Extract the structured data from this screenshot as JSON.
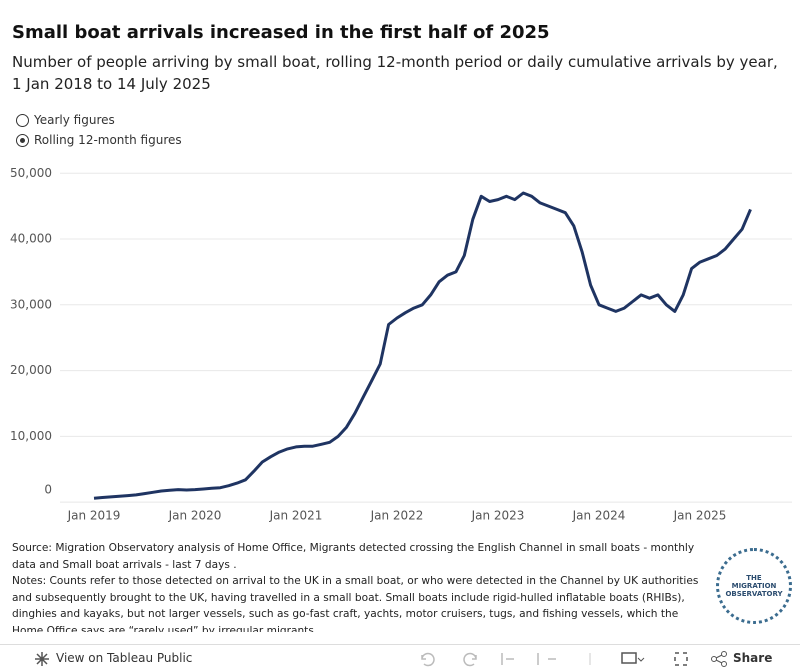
{
  "chart_data": {
    "type": "line",
    "title": "Small boat arrivals increased in the first half of 2025",
    "subtitle": "Number of people arriving by small boat, rolling 12-month period or daily cumulative arrivals by year, 1 Jan 2018 to 14 July 2025",
    "x": [
      "2019-01",
      "2019-02",
      "2019-03",
      "2019-04",
      "2019-05",
      "2019-06",
      "2019-07",
      "2019-08",
      "2019-09",
      "2019-10",
      "2019-11",
      "2019-12",
      "2020-01",
      "2020-02",
      "2020-03",
      "2020-04",
      "2020-05",
      "2020-06",
      "2020-07",
      "2020-08",
      "2020-09",
      "2020-10",
      "2020-11",
      "2020-12",
      "2021-01",
      "2021-02",
      "2021-03",
      "2021-04",
      "2021-05",
      "2021-06",
      "2021-07",
      "2021-08",
      "2021-09",
      "2021-10",
      "2021-11",
      "2021-12",
      "2022-01",
      "2022-02",
      "2022-03",
      "2022-04",
      "2022-05",
      "2022-06",
      "2022-07",
      "2022-08",
      "2022-09",
      "2022-10",
      "2022-11",
      "2022-12",
      "2023-01",
      "2023-02",
      "2023-03",
      "2023-04",
      "2023-05",
      "2023-06",
      "2023-07",
      "2023-08",
      "2023-09",
      "2023-10",
      "2023-11",
      "2023-12",
      "2024-01",
      "2024-02",
      "2024-03",
      "2024-04",
      "2024-05",
      "2024-06",
      "2024-07",
      "2024-08",
      "2024-09",
      "2024-10",
      "2024-11",
      "2024-12",
      "2025-01",
      "2025-02",
      "2025-03",
      "2025-04",
      "2025-05",
      "2025-06",
      "2025-07"
    ],
    "values": [
      600,
      700,
      800,
      900,
      1000,
      1100,
      1300,
      1500,
      1700,
      1800,
      1900,
      1850,
      1900,
      2000,
      2100,
      2200,
      2500,
      2900,
      3400,
      4700,
      6100,
      6900,
      7600,
      8100,
      8400,
      8500,
      8500,
      8800,
      9100,
      10000,
      11400,
      13500,
      16000,
      18500,
      21000,
      27000,
      28000,
      28800,
      29500,
      30000,
      31500,
      33500,
      34500,
      35000,
      37500,
      43000,
      46500,
      45700,
      46000,
      46500,
      46000,
      47000,
      46500,
      45500,
      45000,
      44500,
      44000,
      42000,
      38000,
      33000,
      30000,
      29500,
      29000,
      29500,
      30500,
      31500,
      31000,
      31500,
      30000,
      29000,
      31500,
      35500,
      36500,
      37000,
      37500,
      38500,
      40000,
      41500,
      44500
    ],
    "color": "#1f3462",
    "xticks": [
      {
        "value": "2019-01",
        "label": "Jan 2019"
      },
      {
        "value": "2020-01",
        "label": "Jan 2020"
      },
      {
        "value": "2021-01",
        "label": "Jan 2021"
      },
      {
        "value": "2022-01",
        "label": "Jan 2022"
      },
      {
        "value": "2023-01",
        "label": "Jan 2023"
      },
      {
        "value": "2024-01",
        "label": "Jan 2024"
      },
      {
        "value": "2025-01",
        "label": "Jan 2025"
      }
    ],
    "ylim": [
      -1500,
      50800
    ],
    "yticks": [
      0,
      {
        "value": 10000,
        "label": "10,000"
      },
      {
        "value": 20000,
        "label": "20,000"
      },
      {
        "value": 30000,
        "label": "30,000"
      },
      {
        "value": 40000,
        "label": "40,000"
      },
      {
        "value": 50000,
        "label": "50,000"
      }
    ],
    "grid": true
  },
  "controls": {
    "options": [
      "Yearly figures",
      "Rolling 12-month figures"
    ],
    "selected": 1
  },
  "source": "Source: Migration Observatory analysis of Home Office, Migrants detected crossing the English Channel in small boats - monthly data and Small boat arrivals - last 7 days .",
  "notes": "Notes:  Counts refer to those detected on arrival to the UK in a small boat, or who were detected in the Channel by UK authorities and subsequently brought to the UK, having travelled in a small boat. Small boats include rigid-hulled inflatable boats (RHIBs), dinghies and kayaks, but not larger vessels, such as go-fast craft, yachts, motor cruisers, tugs, and fishing vessels, which the Home Office says are “rarely used” by irregular migrants.",
  "logo": [
    "THE",
    "MIGRATION",
    "OBSERVATORY"
  ],
  "footer": {
    "link": "View on Tableau Public",
    "share": "Share"
  }
}
